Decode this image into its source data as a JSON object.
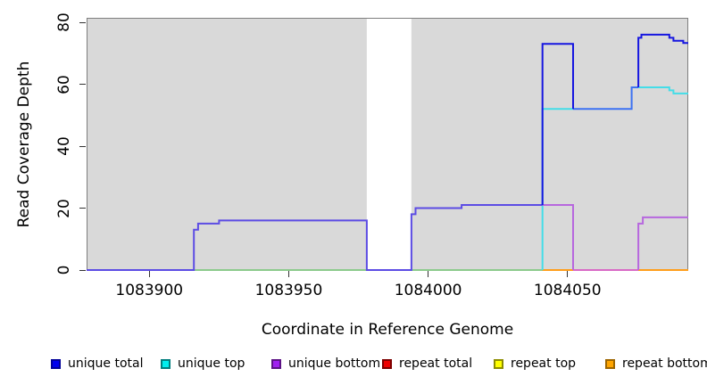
{
  "figure": {
    "y_axis_label": "Read Coverage Depth",
    "x_axis_label": "Coordinate in Reference Genome"
  },
  "legend": {
    "items": [
      {
        "label": "unique total",
        "fill": "#0000ee",
        "border": "#000099"
      },
      {
        "label": "unique top",
        "fill": "#00eeee",
        "border": "#007d7d"
      },
      {
        "label": "unique bottom",
        "fill": "#a020f0",
        "border": "#5c1385"
      },
      {
        "label": "repeat total",
        "fill": "#ee0000",
        "border": "#7d0000"
      },
      {
        "label": "repeat top",
        "fill": "#ffff00",
        "border": "#8c8c00"
      },
      {
        "label": "repeat bottom",
        "fill": "#ffa500",
        "border": "#9c6500"
      }
    ]
  },
  "chart_data": {
    "type": "line",
    "title": "",
    "xlabel": "Coordinate in Reference Genome",
    "ylabel": "Read Coverage Depth",
    "xlim": [
      1083877.5,
      1084093.3
    ],
    "ylim": [
      0,
      81.4
    ],
    "x_ticks": [
      1083900,
      1083950,
      1084000,
      1084050
    ],
    "y_ticks": [
      0,
      20,
      40,
      60,
      80
    ],
    "grid": false,
    "legend_position": "bottom",
    "plot_bg": "#d9d9d9",
    "border_color": "#7f7f7f",
    "masked_region": {
      "x_start": 1083978,
      "x_end": 1083994,
      "color": "#ffffff"
    },
    "series": [
      {
        "name": "unique total",
        "color": "#0000ee",
        "steps": [
          [
            1083877,
            0
          ],
          [
            1083916,
            13
          ],
          [
            1083918,
            15
          ],
          [
            1083925,
            16
          ],
          [
            1083978,
            0
          ],
          [
            1083994,
            18
          ],
          [
            1083996,
            20
          ],
          [
            1084012,
            21
          ],
          [
            1084041,
            73
          ],
          [
            1084052,
            52
          ],
          [
            1084073,
            59
          ],
          [
            1084075,
            75
          ],
          [
            1084077,
            76
          ],
          [
            1084086,
            75
          ],
          [
            1084088,
            74
          ],
          [
            1084092,
            73
          ]
        ]
      },
      {
        "name": "unique top",
        "color": "#00eeee",
        "steps": [
          [
            1083877,
            0
          ],
          [
            1084041,
            52
          ],
          [
            1084073,
            59
          ],
          [
            1084086,
            58
          ],
          [
            1084088,
            57
          ]
        ]
      },
      {
        "name": "unique bottom",
        "color": "#a020f0",
        "steps": [
          [
            1083877,
            0
          ],
          [
            1083916,
            13
          ],
          [
            1083918,
            15
          ],
          [
            1083925,
            16
          ],
          [
            1083978,
            0
          ],
          [
            1083994,
            18
          ],
          [
            1083996,
            20
          ],
          [
            1084012,
            21
          ],
          [
            1084052,
            0
          ],
          [
            1084075,
            15
          ],
          [
            1084077,
            17
          ]
        ]
      },
      {
        "name": "repeat total",
        "color": "#ee0000",
        "steps": [
          [
            1083877,
            0
          ]
        ]
      },
      {
        "name": "repeat top",
        "color": "#ffff00",
        "steps": [
          [
            1083877,
            0
          ]
        ]
      },
      {
        "name": "repeat bottom",
        "color": "#ffa500",
        "steps": [
          [
            1083877,
            0
          ]
        ]
      }
    ],
    "render_lines": [
      {
        "name": "baseline-green-a",
        "color": "#8cca8c",
        "pts": [
          [
            1083916,
            0
          ],
          [
            1083978,
            0
          ]
        ]
      },
      {
        "name": "baseline-green-b",
        "color": "#8cca8c",
        "pts": [
          [
            1083994,
            0
          ],
          [
            1084041,
            0
          ]
        ]
      },
      {
        "name": "baseline-orange-a",
        "color": "#ff9e1b",
        "pts": [
          [
            1084041,
            0
          ],
          [
            1084052,
            0
          ]
        ]
      },
      {
        "name": "baseline-magenta",
        "color": "#d96ac6",
        "pts": [
          [
            1084052,
            0
          ],
          [
            1084075.4,
            0
          ]
        ]
      },
      {
        "name": "baseline-orange-b",
        "color": "#ff9e1b",
        "pts": [
          [
            1084075.4,
            0
          ],
          [
            1084093.3,
            0
          ]
        ]
      },
      {
        "name": "unique-top-rise",
        "color": "#44dde8",
        "pts": [
          [
            1084041,
            0
          ],
          [
            1084041,
            52
          ],
          [
            1084052,
            52
          ]
        ]
      },
      {
        "name": "unique-top-right",
        "color": "#44dde8",
        "pts": [
          [
            1084075.4,
            59
          ],
          [
            1084086.5,
            59
          ],
          [
            1084086.5,
            58
          ],
          [
            1084088,
            58
          ],
          [
            1084088,
            57
          ],
          [
            1084093.3,
            57
          ]
        ]
      },
      {
        "name": "unique-bottom-step",
        "color": "#b767de",
        "pts": [
          [
            1084041,
            21
          ],
          [
            1084052,
            21
          ],
          [
            1084052,
            0
          ]
        ]
      },
      {
        "name": "unique-bottom-right",
        "color": "#b767de",
        "pts": [
          [
            1084075.4,
            0
          ],
          [
            1084075.4,
            15
          ],
          [
            1084077,
            15
          ],
          [
            1084077,
            17
          ],
          [
            1084093.3,
            17
          ]
        ]
      },
      {
        "name": "total-bottom-overlap",
        "color": "#5c4ce4",
        "pts": [
          [
            1083877.5,
            0
          ],
          [
            1083916,
            0
          ],
          [
            1083916,
            13
          ],
          [
            1083917.5,
            13
          ],
          [
            1083917.5,
            15
          ],
          [
            1083925,
            15
          ],
          [
            1083925,
            16
          ],
          [
            1083978,
            16
          ],
          [
            1083978,
            0
          ],
          [
            1083994,
            0
          ],
          [
            1083994,
            18
          ],
          [
            1083995.5,
            18
          ],
          [
            1083995.5,
            20
          ],
          [
            1084012,
            20
          ],
          [
            1084012,
            21
          ],
          [
            1084041,
            21
          ]
        ]
      },
      {
        "name": "total-top-overlap",
        "color": "#3d72f2",
        "pts": [
          [
            1084052,
            52
          ],
          [
            1084073,
            52
          ],
          [
            1084073,
            59
          ],
          [
            1084075.4,
            59
          ]
        ]
      },
      {
        "name": "unique-total-peak",
        "color": "#1616e0",
        "pts": [
          [
            1084041,
            21
          ],
          [
            1084041,
            73
          ],
          [
            1084052,
            73
          ],
          [
            1084052,
            52
          ]
        ]
      },
      {
        "name": "unique-total-right",
        "color": "#1616e0",
        "pts": [
          [
            1084075.4,
            59
          ],
          [
            1084075.4,
            75
          ],
          [
            1084076.5,
            75
          ],
          [
            1084076.5,
            76
          ],
          [
            1084086.5,
            76
          ],
          [
            1084086.5,
            75
          ],
          [
            1084088,
            75
          ],
          [
            1084088,
            74
          ],
          [
            1084091.5,
            74
          ],
          [
            1084091.5,
            73.3
          ],
          [
            1084093.3,
            73.3
          ]
        ]
      }
    ]
  }
}
